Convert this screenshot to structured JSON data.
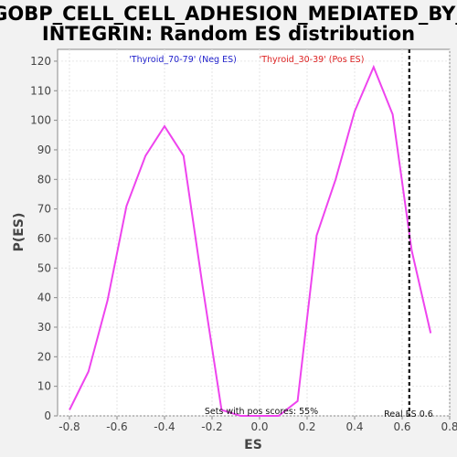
{
  "chart_data": {
    "type": "line",
    "title_lines": [
      "GOBP_CELL_CELL_ADHESION_MEDIATED_BY_",
      "INTEGRIN: Random ES distribution"
    ],
    "xlabel": "ES",
    "ylabel": "P(ES)",
    "xlim": [
      -0.85,
      0.8
    ],
    "ylim": [
      0,
      124
    ],
    "x_ticks": [
      -0.8,
      -0.6,
      -0.4,
      -0.2,
      0.0,
      0.2,
      0.4,
      0.6,
      0.8
    ],
    "x_tick_labels": [
      "-0.8",
      "-0.6",
      "-0.4",
      "-0.2",
      "0.0",
      "0.2",
      "0.4",
      "0.6",
      "0.8"
    ],
    "y_ticks": [
      0,
      10,
      20,
      30,
      40,
      50,
      60,
      70,
      80,
      90,
      100,
      110,
      120
    ],
    "y_tick_labels": [
      "0",
      "10",
      "20",
      "30",
      "40",
      "50",
      "60",
      "70",
      "80",
      "90",
      "100",
      "110",
      "120"
    ],
    "grid": true,
    "series": [
      {
        "color": "#ee44ee",
        "x": [
          -0.8,
          -0.72,
          -0.64,
          -0.56,
          -0.48,
          -0.4,
          -0.32,
          -0.24,
          -0.16,
          -0.08,
          0.0,
          0.08,
          0.16,
          0.24,
          0.32,
          0.4,
          0.48,
          0.56,
          0.64,
          0.72
        ],
        "y": [
          2,
          15,
          39,
          71,
          88,
          98,
          88,
          44,
          2,
          0,
          0,
          0,
          5,
          61,
          80,
          103,
          118,
          102,
          56,
          28
        ]
      }
    ],
    "real_es": 0.63,
    "annotations": {
      "neg_label": "'Thyroid_70-79' (Neg ES)",
      "neg_color": "#2222cc",
      "pos_label": "'Thyroid_30-39' (Pos ES)",
      "pos_color": "#dd2222",
      "sets_text": "Sets with pos scores: 55%",
      "real_es_text": "Real ES 0.6"
    }
  }
}
